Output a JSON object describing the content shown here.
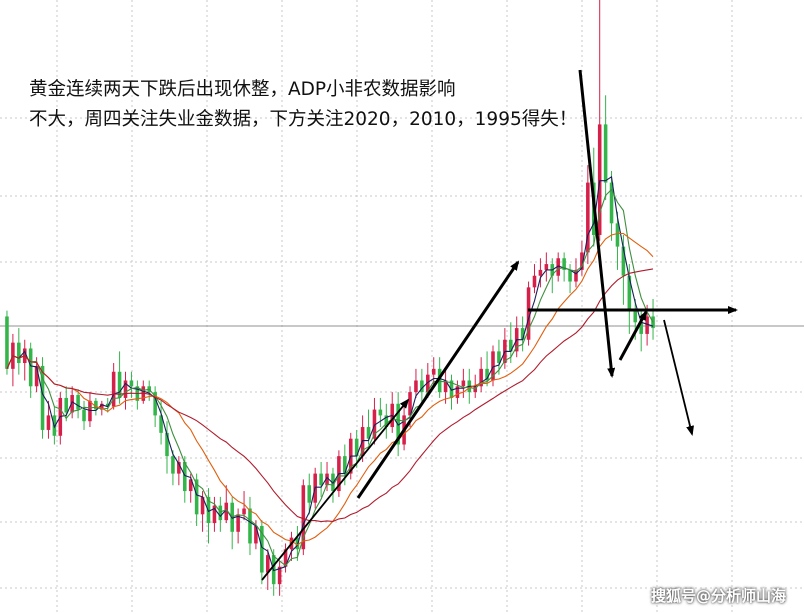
{
  "annotation": {
    "line1": "黄金连续两天下跌后出现休整，ADP小非农数据影响",
    "line2": "不大，周四关注失业金数据，下方关注2020，2010，1995得失！"
  },
  "watermark": "搜狐号@分析师山海",
  "colors": {
    "bull": "#d6204a",
    "bear": "#33b54a",
    "ma_fast": "#1a1f5c",
    "ma_mid": "#3f8f3f",
    "ma_slow": "#e06010",
    "ma_long": "#b01c2e",
    "grid": "#c8c8c8",
    "arrow": "#000000"
  },
  "chart_data": {
    "type": "candlestick",
    "title": "",
    "xlabel": "",
    "ylabel": "",
    "grid": true,
    "series_count": 4,
    "trend_arrows": [
      "up",
      "up",
      "down",
      "up",
      "right",
      "down"
    ],
    "support_levels": [
      2020,
      2010,
      1995
    ],
    "candles": [
      [
        0.84,
        0.66,
        0.86,
        0.64
      ],
      [
        0.66,
        0.75,
        0.78,
        0.6
      ],
      [
        0.75,
        0.68,
        0.8,
        0.64
      ],
      [
        0.68,
        0.73,
        0.76,
        0.62
      ],
      [
        0.73,
        0.6,
        0.75,
        0.56
      ],
      [
        0.6,
        0.67,
        0.7,
        0.58
      ],
      [
        0.67,
        0.45,
        0.7,
        0.42
      ],
      [
        0.45,
        0.5,
        0.55,
        0.42
      ],
      [
        0.5,
        0.43,
        0.53,
        0.4
      ],
      [
        0.43,
        0.56,
        0.58,
        0.4
      ],
      [
        0.56,
        0.51,
        0.6,
        0.48
      ],
      [
        0.51,
        0.57,
        0.6,
        0.49
      ],
      [
        0.57,
        0.52,
        0.59,
        0.49
      ],
      [
        0.52,
        0.48,
        0.55,
        0.45
      ],
      [
        0.48,
        0.55,
        0.58,
        0.46
      ],
      [
        0.55,
        0.52,
        0.56,
        0.5
      ],
      [
        0.52,
        0.54,
        0.55,
        0.5
      ],
      [
        0.54,
        0.53,
        0.56,
        0.51
      ],
      [
        0.53,
        0.65,
        0.68,
        0.52
      ],
      [
        0.65,
        0.56,
        0.72,
        0.54
      ],
      [
        0.56,
        0.62,
        0.65,
        0.52
      ],
      [
        0.62,
        0.6,
        0.65,
        0.56
      ],
      [
        0.6,
        0.55,
        0.62,
        0.52
      ],
      [
        0.55,
        0.6,
        0.62,
        0.54
      ],
      [
        0.6,
        0.58,
        0.62,
        0.55
      ],
      [
        0.58,
        0.5,
        0.6,
        0.46
      ],
      [
        0.5,
        0.44,
        0.55,
        0.4
      ],
      [
        0.44,
        0.36,
        0.48,
        0.3
      ],
      [
        0.36,
        0.3,
        0.38,
        0.26
      ],
      [
        0.3,
        0.34,
        0.36,
        0.26
      ],
      [
        0.34,
        0.24,
        0.36,
        0.2
      ],
      [
        0.24,
        0.28,
        0.3,
        0.2
      ],
      [
        0.28,
        0.16,
        0.3,
        0.12
      ],
      [
        0.16,
        0.22,
        0.24,
        0.1
      ],
      [
        0.22,
        0.13,
        0.25,
        0.06
      ],
      [
        0.13,
        0.19,
        0.22,
        0.1
      ],
      [
        0.19,
        0.14,
        0.22,
        0.1
      ],
      [
        0.14,
        0.2,
        0.26,
        0.13
      ],
      [
        0.2,
        0.1,
        0.22,
        0.04
      ],
      [
        0.1,
        0.16,
        0.18,
        0.06
      ],
      [
        0.16,
        0.18,
        0.24,
        0.14
      ],
      [
        0.18,
        0.06,
        0.22,
        0.02
      ],
      [
        0.06,
        0.12,
        0.14,
        0.04
      ],
      [
        0.12,
        -0.04,
        0.14,
        -0.08
      ],
      [
        -0.04,
        0.02,
        0.04,
        -0.1
      ],
      [
        0.02,
        -0.08,
        0.04,
        -0.12
      ],
      [
        -0.08,
        -0.02,
        0.0,
        -0.12
      ],
      [
        -0.02,
        0.04,
        0.06,
        -0.04
      ],
      [
        0.04,
        0.08,
        0.1,
        0.0
      ],
      [
        0.08,
        0.04,
        0.12,
        0.0
      ],
      [
        0.04,
        0.26,
        0.28,
        0.02
      ],
      [
        0.26,
        0.2,
        0.3,
        0.16
      ],
      [
        0.2,
        0.3,
        0.32,
        0.18
      ],
      [
        0.3,
        0.26,
        0.34,
        0.22
      ],
      [
        0.26,
        0.3,
        0.34,
        0.24
      ],
      [
        0.3,
        0.24,
        0.32,
        0.2
      ],
      [
        0.24,
        0.36,
        0.38,
        0.22
      ],
      [
        0.36,
        0.3,
        0.4,
        0.26
      ],
      [
        0.3,
        0.42,
        0.44,
        0.28
      ],
      [
        0.42,
        0.36,
        0.45,
        0.32
      ],
      [
        0.36,
        0.46,
        0.5,
        0.34
      ],
      [
        0.46,
        0.42,
        0.52,
        0.4
      ],
      [
        0.42,
        0.52,
        0.56,
        0.4
      ],
      [
        0.52,
        0.5,
        0.56,
        0.46
      ],
      [
        0.5,
        0.46,
        0.54,
        0.42
      ],
      [
        0.46,
        0.54,
        0.58,
        0.44
      ],
      [
        0.54,
        0.4,
        0.58,
        0.36
      ],
      [
        0.4,
        0.5,
        0.54,
        0.38
      ],
      [
        0.5,
        0.58,
        0.6,
        0.46
      ],
      [
        0.58,
        0.62,
        0.66,
        0.56
      ],
      [
        0.62,
        0.58,
        0.66,
        0.54
      ],
      [
        0.58,
        0.64,
        0.68,
        0.56
      ],
      [
        0.64,
        0.66,
        0.7,
        0.6
      ],
      [
        0.66,
        0.58,
        0.7,
        0.56
      ],
      [
        0.58,
        0.62,
        0.66,
        0.54
      ],
      [
        0.62,
        0.56,
        0.64,
        0.52
      ],
      [
        0.56,
        0.6,
        0.62,
        0.54
      ],
      [
        0.6,
        0.62,
        0.66,
        0.56
      ],
      [
        0.62,
        0.58,
        0.66,
        0.54
      ],
      [
        0.58,
        0.6,
        0.64,
        0.56
      ],
      [
        0.6,
        0.66,
        0.7,
        0.58
      ],
      [
        0.66,
        0.62,
        0.72,
        0.6
      ],
      [
        0.62,
        0.72,
        0.74,
        0.6
      ],
      [
        0.72,
        0.68,
        0.76,
        0.64
      ],
      [
        0.68,
        0.76,
        0.8,
        0.66
      ],
      [
        0.76,
        0.72,
        0.82,
        0.68
      ],
      [
        0.72,
        0.8,
        0.84,
        0.7
      ],
      [
        0.8,
        0.76,
        0.84,
        0.72
      ],
      [
        0.76,
        0.94,
        0.96,
        0.74
      ],
      [
        0.94,
        0.98,
        1.02,
        0.92
      ],
      [
        0.98,
        1.0,
        1.04,
        0.94
      ],
      [
        1.0,
        1.02,
        1.06,
        0.96
      ],
      [
        1.02,
        0.98,
        1.04,
        0.92
      ],
      [
        0.98,
        1.04,
        1.06,
        0.96
      ],
      [
        1.04,
        1.0,
        1.06,
        0.96
      ],
      [
        1.0,
        0.96,
        1.02,
        0.92
      ],
      [
        0.96,
        1.0,
        1.04,
        0.94
      ],
      [
        1.0,
        1.06,
        1.1,
        0.98
      ],
      [
        1.06,
        1.3,
        1.36,
        1.02
      ],
      [
        1.3,
        1.12,
        1.42,
        1.08
      ],
      [
        1.12,
        1.5,
        2.0,
        1.1
      ],
      [
        1.5,
        1.3,
        1.6,
        1.24
      ],
      [
        1.3,
        1.16,
        1.34,
        1.1
      ],
      [
        1.16,
        1.08,
        1.2,
        1.0
      ],
      [
        1.08,
        0.98,
        1.12,
        0.88
      ],
      [
        0.98,
        0.86,
        1.02,
        0.78
      ],
      [
        0.86,
        0.82,
        0.9,
        0.76
      ],
      [
        0.82,
        0.78,
        0.86,
        0.72
      ],
      [
        0.78,
        0.84,
        0.88,
        0.74
      ],
      [
        0.84,
        0.8,
        0.9,
        0.76
      ]
    ]
  }
}
